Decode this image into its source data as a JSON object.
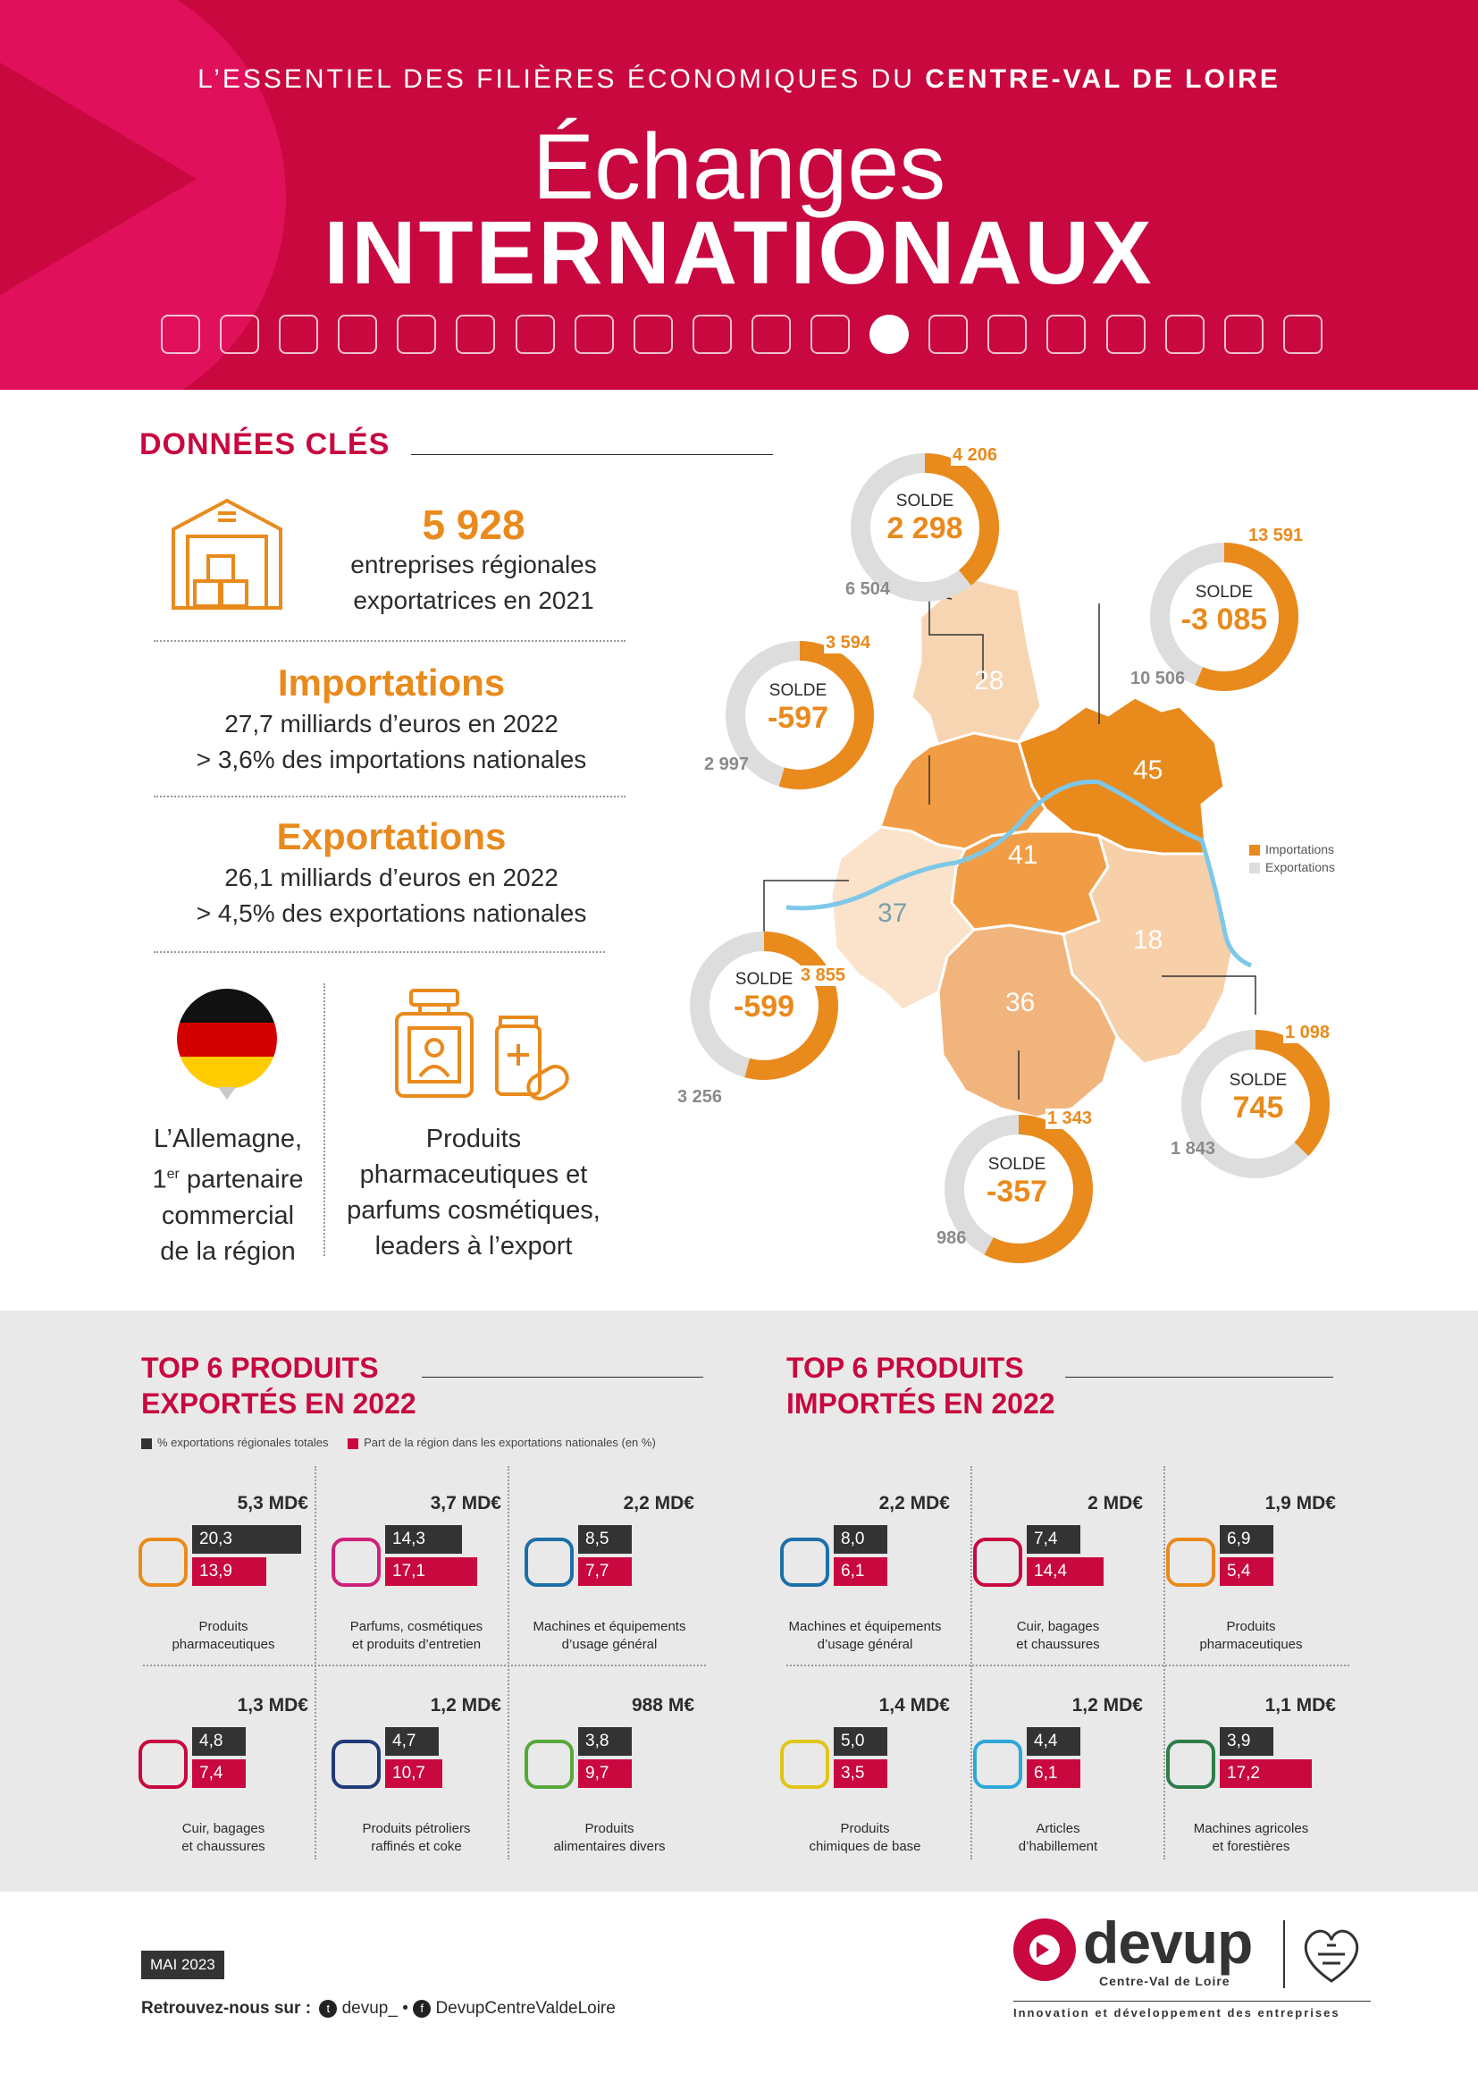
{
  "header": {
    "kicker_prefix": "L’ESSENTIEL DES FILIÈRES ÉCONOMIQUES DU",
    "kicker_region": "CENTRE-VAL DE LOIRE",
    "title_line1": "Échanges",
    "title_line2": "INTERNATIONAUX",
    "icons": [
      "robot-arm-icon",
      "chip-icon",
      "stethoscope-icon",
      "train-icon",
      "pills-icon",
      "truck-icon",
      "box-icon",
      "car-icon",
      "microscope-icon",
      "bottle-icon",
      "lipstick-icon",
      "plant-icon",
      "globe-icon",
      "headset-icon",
      "factory-icon",
      "airplane-icon",
      "crane-icon",
      "film-reel-icon",
      "recycle-icon",
      "wine-icon"
    ]
  },
  "key_data": {
    "title": "DONNÉES CLÉS",
    "companies_value": "5 928",
    "companies_text_1": "entreprises régionales",
    "companies_text_2": "exportatrices en 2021",
    "imports_title": "Importations",
    "imports_line1": "27,7 milliards d’euros en 2022",
    "imports_line2": "> 3,6% des importations nationales",
    "exports_title": "Exportations",
    "exports_line1": "26,1 milliards d’euros en 2022",
    "exports_line2": "> 4,5% des exportations nationales",
    "germany_l1": "L’Allemagne,",
    "germany_l2a": "1",
    "germany_l2sup": "er",
    "germany_l2b": " partenaire",
    "germany_l3": "commercial",
    "germany_l4": "de la région",
    "pharma_l1": "Produits",
    "pharma_l2": "pharmaceutiques et",
    "pharma_l3": "parfums cosmétiques,",
    "pharma_l4": "leaders à l’export"
  },
  "map": {
    "legend_imports": "Importations",
    "legend_exports": "Exportations",
    "solde_word": "SOLDE",
    "departments": [
      {
        "code": "28",
        "imports": "4 206",
        "exports": "6 504",
        "solde": "2 298",
        "imports_value": 4206,
        "exports_value": 6504
      },
      {
        "code": "45",
        "imports": "13 591",
        "exports": "10 506",
        "solde": "-3 085",
        "imports_value": 13591,
        "exports_value": 10506
      },
      {
        "code": "41",
        "imports": "3 594",
        "exports": "2 997",
        "solde": "-597",
        "imports_value": 3594,
        "exports_value": 2997
      },
      {
        "code": "37",
        "imports": "3 855",
        "exports": "3 256",
        "solde": "-599",
        "imports_value": 3855,
        "exports_value": 3256
      },
      {
        "code": "18",
        "imports": "1 098",
        "exports": "1 843",
        "solde": "745",
        "imports_value": 1098,
        "exports_value": 1843
      },
      {
        "code": "36",
        "imports": "1 343",
        "exports": "986",
        "solde": "-357",
        "imports_value": 1343,
        "exports_value": 986
      }
    ],
    "colors": {
      "imports": "#e98a1c",
      "exports": "#dddddd"
    }
  },
  "top_exports": {
    "title_l1": "TOP 6 PRODUITS",
    "title_l2": "EXPORTÉS EN 2022",
    "legend_dark": "% exportations régionales totales",
    "legend_red": "Part de la région dans les exportations nationales (en %)",
    "items": [
      {
        "amount": "5,3 MD€",
        "pct_total": "20,3",
        "pct_nat": "13,9",
        "label_l1": "Produits",
        "label_l2": "pharmaceutiques",
        "icon": "pills-icon",
        "v1": 20.3,
        "v2": 13.9
      },
      {
        "amount": "3,7 MD€",
        "pct_total": "14,3",
        "pct_nat": "17,1",
        "label_l1": "Parfums, cosmétiques",
        "label_l2": "et produits d’entretien",
        "icon": "perfume-icon",
        "v1": 14.3,
        "v2": 17.1
      },
      {
        "amount": "2,2 MD€",
        "pct_total": "8,5",
        "pct_nat": "7,7",
        "label_l1": "Machines et équipements",
        "label_l2": "d’usage général",
        "icon": "tools-icon",
        "v1": 8.5,
        "v2": 7.7
      },
      {
        "amount": "1,3 MD€",
        "pct_total": "4,8",
        "pct_nat": "7,4",
        "label_l1": "Cuir, bagages",
        "label_l2": "et chaussures",
        "icon": "shoe-icon",
        "v1": 4.8,
        "v2": 7.4
      },
      {
        "amount": "1,2 MD€",
        "pct_total": "4,7",
        "pct_nat": "10,7",
        "label_l1": "Produits pétroliers",
        "label_l2": "raffinés et coke",
        "icon": "fuel-nozzle-icon",
        "v1": 4.7,
        "v2": 10.7
      },
      {
        "amount": "988 M€",
        "pct_total": "3,8",
        "pct_nat": "9,7",
        "label_l1": "Produits",
        "label_l2": "alimentaires divers",
        "icon": "apple-icon",
        "v1": 3.8,
        "v2": 9.7
      }
    ]
  },
  "top_imports": {
    "title_l1": "TOP 6 PRODUITS",
    "title_l2": "IMPORTÉS EN 2022",
    "items": [
      {
        "amount": "2,2 MD€",
        "pct_total": "8,0",
        "pct_nat": "6,1",
        "label_l1": "Machines et équipements",
        "label_l2": "d’usage général",
        "icon": "tools-icon",
        "v1": 8.0,
        "v2": 6.1
      },
      {
        "amount": "2 MD€",
        "pct_total": "7,4",
        "pct_nat": "14,4",
        "label_l1": "Cuir, bagages",
        "label_l2": "et chaussures",
        "icon": "shoe-icon",
        "v1": 7.4,
        "v2": 14.4
      },
      {
        "amount": "1,9 MD€",
        "pct_total": "6,9",
        "pct_nat": "5,4",
        "label_l1": "Produits",
        "label_l2": "pharmaceutiques",
        "icon": "pills-icon",
        "v1": 6.9,
        "v2": 5.4
      },
      {
        "amount": "1,4 MD€",
        "pct_total": "5,0",
        "pct_nat": "3,5",
        "label_l1": "Produits",
        "label_l2": "chimiques de base",
        "icon": "flask-icon",
        "v1": 5.0,
        "v2": 3.5
      },
      {
        "amount": "1,2 MD€",
        "pct_total": "4,4",
        "pct_nat": "6,1",
        "label_l1": "Articles",
        "label_l2": "d’habillement",
        "icon": "tshirt-icon",
        "v1": 4.4,
        "v2": 6.1
      },
      {
        "amount": "1,1 MD€",
        "pct_total": "3,9",
        "pct_nat": "17,2",
        "label_l1": "Machines agricoles",
        "label_l2": "et forestières",
        "icon": "tractor-icon",
        "v1": 3.9,
        "v2": 17.2
      }
    ]
  },
  "footer": {
    "date": "MAI 2023",
    "find_us": "Retrouvez-nous sur :",
    "twitter": "devup_",
    "separator": "•",
    "facebook": "DevupCentreValdeLoire",
    "logo_text": "devup",
    "logo_sub": "Centre-Val de Loire",
    "tagline": "Innovation et développement des entreprises"
  }
}
